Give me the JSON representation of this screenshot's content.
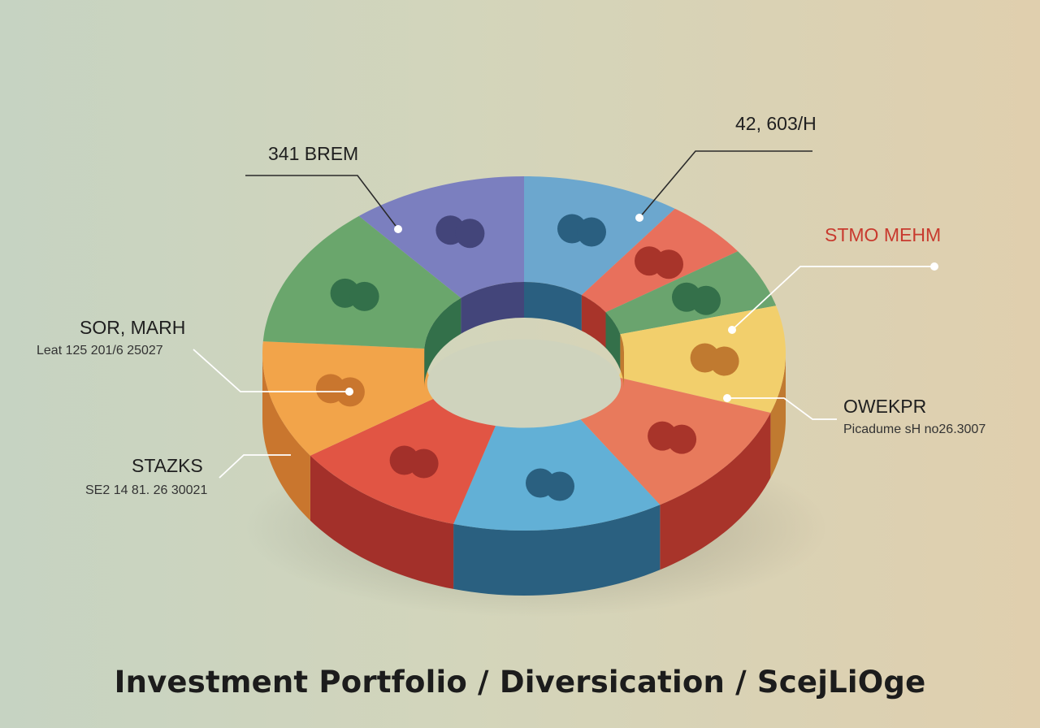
{
  "title": "Investment Portfolio / Diversication / ScejLiOge",
  "chart_data": {
    "type": "pie",
    "style": "3d-donut",
    "segments": [
      {
        "color": "#6ca7ce",
        "side": "#2a5f80",
        "value": 9
      },
      {
        "color": "#e8705c",
        "side": "#a8342a",
        "value": 5
      },
      {
        "color": "#6aa46e",
        "side": "#34704a",
        "value": 5
      },
      {
        "color": "#f2cf6c",
        "side": "#c07a30",
        "value": 9
      },
      {
        "color": "#e87a5c",
        "side": "#a8342a",
        "value": 10
      },
      {
        "color": "#62b0d6",
        "side": "#2a6080",
        "value": 12
      },
      {
        "color": "#e15544",
        "side": "#a3302a",
        "value": 10
      },
      {
        "color": "#f2a44a",
        "side": "#c9762e",
        "value": 10
      },
      {
        "color": "#6aa66c",
        "side": "#33704a",
        "value": 12
      },
      {
        "color": "#7b7fbf",
        "side": "#43457a",
        "value": 10
      }
    ],
    "annotations": [
      {
        "name": "341 BREM",
        "sub": ""
      },
      {
        "name": "42, 603/H",
        "sub": ""
      },
      {
        "name": "STMO MEHM",
        "sub": "",
        "color": "#c83a2e"
      },
      {
        "name": "OWEKPR",
        "sub": "Picadume sH no26.3007"
      },
      {
        "name": "SOR, MARH",
        "sub": "Leat 125 201/6 25027"
      },
      {
        "name": "STAZKS",
        "sub": "SE2 14 81. 26 30021"
      }
    ]
  }
}
